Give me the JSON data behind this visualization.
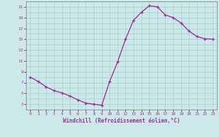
{
  "x": [
    0,
    1,
    2,
    3,
    4,
    5,
    6,
    7,
    8,
    9,
    10,
    11,
    12,
    13,
    14,
    15,
    16,
    17,
    18,
    19,
    20,
    21,
    22,
    23
  ],
  "y": [
    8,
    7.2,
    6.2,
    5.5,
    5.1,
    4.5,
    3.8,
    3.2,
    3.0,
    2.8,
    7.2,
    10.8,
    15.0,
    18.5,
    20.0,
    21.2,
    21.0,
    19.5,
    19.0,
    18.0,
    16.5,
    15.5,
    15.1,
    15.0
  ],
  "line_color": "#993399",
  "marker": "+",
  "marker_color": "#993399",
  "bg_color": "#cce8e8",
  "grid_color": "#aad4d4",
  "xlabel": "Windchill (Refroidissement éolien,°C)",
  "xlabel_color": "#993399",
  "tick_color": "#993399",
  "xlim": [
    -0.5,
    23.5
  ],
  "ylim": [
    2,
    22
  ],
  "yticks": [
    3,
    5,
    7,
    9,
    11,
    13,
    15,
    17,
    19,
    21
  ],
  "xticks": [
    0,
    1,
    2,
    3,
    4,
    5,
    6,
    7,
    8,
    9,
    10,
    11,
    12,
    13,
    14,
    15,
    16,
    17,
    18,
    19,
    20,
    21,
    22,
    23
  ],
  "linewidth": 1.0,
  "markersize": 3.5
}
